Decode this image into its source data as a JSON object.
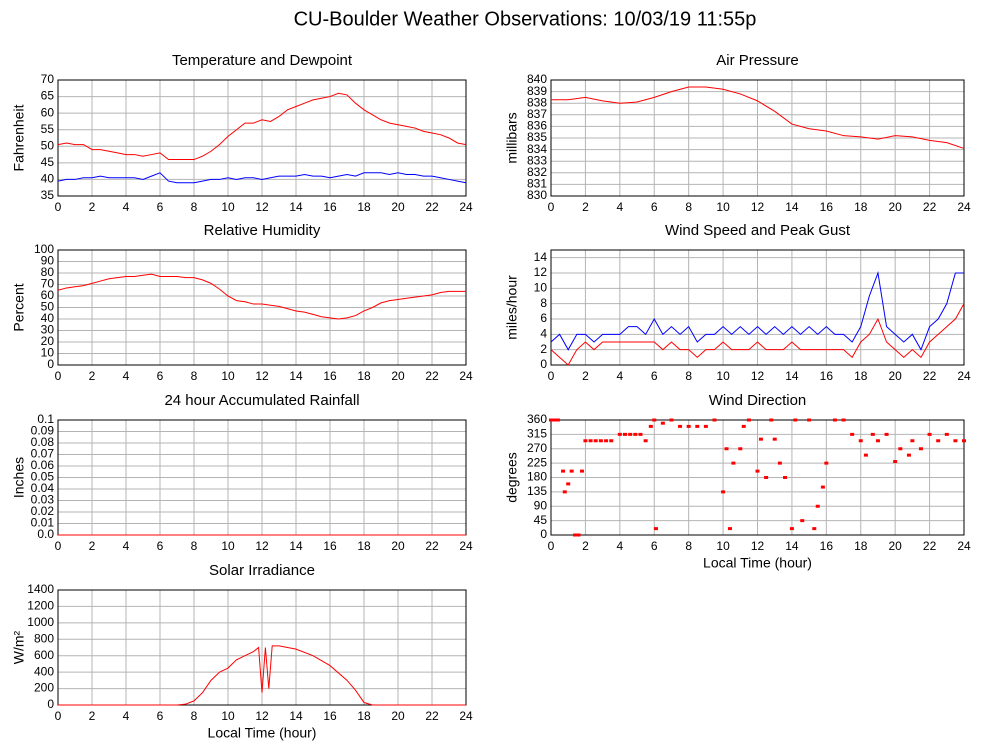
{
  "title": "CU-Boulder Weather Observations: 10/03/19 11:55p",
  "chart_data": [
    {
      "type": "line",
      "title": "Temperature and Dewpoint",
      "y_label": "Fahrenheit",
      "xlim": [
        0,
        24
      ],
      "xticks": [
        0,
        2,
        4,
        6,
        8,
        10,
        12,
        14,
        16,
        18,
        20,
        22,
        24
      ],
      "ylim": [
        35,
        70
      ],
      "yticks": [
        35,
        40,
        45,
        50,
        55,
        60,
        65,
        70
      ],
      "grid": true,
      "x": [
        0,
        0.5,
        1,
        1.5,
        2,
        2.5,
        3,
        3.5,
        4,
        4.5,
        5,
        5.5,
        6,
        6.5,
        7,
        7.5,
        8,
        8.5,
        9,
        9.5,
        10,
        10.5,
        11,
        11.5,
        12,
        12.5,
        13,
        13.5,
        14,
        14.5,
        15,
        15.5,
        16,
        16.5,
        17,
        17.5,
        18,
        18.5,
        19,
        19.5,
        20,
        20.5,
        21,
        21.5,
        22,
        22.5,
        23,
        23.5,
        24
      ],
      "series": [
        {
          "color": "#ff0000",
          "values": [
            50.5,
            51,
            50.5,
            50.5,
            49,
            49,
            48.5,
            48,
            47.5,
            47.5,
            47,
            47.5,
            48,
            46,
            46,
            46,
            46,
            47,
            48.5,
            50.5,
            53,
            55,
            57,
            57,
            58,
            57.5,
            59,
            61,
            62,
            63,
            64,
            64.5,
            65,
            66,
            65.5,
            63,
            61,
            59.5,
            58,
            57,
            56.5,
            56,
            55.5,
            54.5,
            54,
            53.5,
            52.5,
            51,
            50.5
          ]
        },
        {
          "color": "#0000ff",
          "values": [
            39.5,
            40,
            40,
            40.5,
            40.5,
            41,
            40.5,
            40.5,
            40.5,
            40.5,
            40,
            41,
            42,
            39.5,
            39,
            39,
            39,
            39.5,
            40,
            40,
            40.5,
            40,
            40.5,
            40.5,
            40,
            40.5,
            41,
            41,
            41,
            41.5,
            41,
            41,
            40.5,
            41,
            41.5,
            41,
            42,
            42,
            42,
            41.5,
            42,
            41.5,
            41.5,
            41,
            41,
            40.5,
            40,
            39.5,
            39
          ]
        }
      ]
    },
    {
      "type": "line",
      "title": "Air Pressure",
      "y_label": "millibars",
      "xlim": [
        0,
        24
      ],
      "xticks": [
        0,
        2,
        4,
        6,
        8,
        10,
        12,
        14,
        16,
        18,
        20,
        22,
        24
      ],
      "ylim": [
        830,
        840
      ],
      "yticks": [
        830,
        831,
        832,
        833,
        834,
        835,
        836,
        837,
        838,
        839,
        840
      ],
      "grid": true,
      "x": [
        0,
        0.5,
        1,
        2,
        3,
        4,
        5,
        6,
        7,
        8,
        9,
        10,
        11,
        12,
        13,
        14,
        15,
        16,
        17,
        18,
        19,
        20,
        21,
        22,
        23,
        24
      ],
      "series": [
        {
          "color": "#ff0000",
          "values": [
            838.3,
            838.3,
            838.3,
            838.5,
            838.2,
            838,
            838.1,
            838.5,
            839,
            839.4,
            839.4,
            839.2,
            838.8,
            838.2,
            837.3,
            836.2,
            835.8,
            835.6,
            835.2,
            835.1,
            834.9,
            835.2,
            835.1,
            834.8,
            834.6,
            834.1
          ]
        }
      ]
    },
    {
      "type": "line",
      "title": "Relative Humidity",
      "y_label": "Percent",
      "xlim": [
        0,
        24
      ],
      "xticks": [
        0,
        2,
        4,
        6,
        8,
        10,
        12,
        14,
        16,
        18,
        20,
        22,
        24
      ],
      "ylim": [
        0,
        100
      ],
      "yticks": [
        0,
        10,
        20,
        30,
        40,
        50,
        60,
        70,
        80,
        90,
        100
      ],
      "grid": true,
      "x": [
        0,
        0.5,
        1,
        1.5,
        2,
        2.5,
        3,
        3.5,
        4,
        4.5,
        5,
        5.5,
        6,
        6.5,
        7,
        7.5,
        8,
        8.5,
        9,
        9.5,
        10,
        10.5,
        11,
        11.5,
        12,
        12.5,
        13,
        13.5,
        14,
        14.5,
        15,
        15.5,
        16,
        16.5,
        17,
        17.5,
        18,
        18.5,
        19,
        19.5,
        20,
        20.5,
        21,
        21.5,
        22,
        22.5,
        23,
        23.5,
        24
      ],
      "series": [
        {
          "color": "#ff0000",
          "values": [
            65,
            67,
            68,
            69,
            71,
            73,
            75,
            76,
            77,
            77,
            78,
            79,
            77,
            77,
            77,
            76,
            76,
            74,
            71,
            66,
            60,
            56,
            55,
            53,
            53,
            52,
            51,
            49,
            47,
            46,
            44,
            42,
            41,
            40,
            41,
            43,
            47,
            50,
            54,
            56,
            57,
            58,
            59,
            60,
            61,
            63,
            64,
            64,
            64
          ]
        }
      ]
    },
    {
      "type": "line",
      "title": "Wind Speed and Peak Gust",
      "y_label": "miles/hour",
      "xlim": [
        0,
        24
      ],
      "xticks": [
        0,
        2,
        4,
        6,
        8,
        10,
        12,
        14,
        16,
        18,
        20,
        22,
        24
      ],
      "ylim": [
        0,
        15
      ],
      "yticks": [
        0,
        2,
        4,
        6,
        8,
        10,
        12,
        14
      ],
      "grid": true,
      "x": [
        0,
        0.5,
        1,
        1.5,
        2,
        2.5,
        3,
        3.5,
        4,
        4.5,
        5,
        5.5,
        6,
        6.5,
        7,
        7.5,
        8,
        8.5,
        9,
        9.5,
        10,
        10.5,
        11,
        11.5,
        12,
        12.5,
        13,
        13.5,
        14,
        14.5,
        15,
        15.5,
        16,
        16.5,
        17,
        17.5,
        18,
        18.5,
        19,
        19.5,
        20,
        20.5,
        21,
        21.5,
        22,
        22.5,
        23,
        23.5,
        24
      ],
      "series": [
        {
          "color": "#0000ff",
          "values": [
            3,
            4,
            2,
            4,
            4,
            3,
            4,
            4,
            4,
            5,
            5,
            4,
            6,
            4,
            5,
            4,
            5,
            3,
            4,
            4,
            5,
            4,
            5,
            4,
            5,
            4,
            5,
            4,
            5,
            4,
            5,
            4,
            5,
            4,
            4,
            3,
            5,
            9,
            12,
            5,
            4,
            3,
            4,
            2,
            5,
            6,
            8,
            12,
            12
          ]
        },
        {
          "color": "#ff0000",
          "values": [
            2,
            1,
            0,
            2,
            3,
            2,
            3,
            3,
            3,
            3,
            3,
            3,
            3,
            2,
            3,
            2,
            2,
            1,
            2,
            2,
            3,
            2,
            2,
            2,
            3,
            2,
            2,
            2,
            3,
            2,
            2,
            2,
            2,
            2,
            2,
            1,
            3,
            4,
            6,
            3,
            2,
            1,
            2,
            1,
            3,
            4,
            5,
            6,
            8
          ]
        }
      ]
    },
    {
      "type": "line",
      "title": "24 hour Accumulated Rainfall",
      "y_label": "Inches",
      "xlim": [
        0,
        24
      ],
      "xticks": [
        0,
        2,
        4,
        6,
        8,
        10,
        12,
        14,
        16,
        18,
        20,
        22,
        24
      ],
      "ylim": [
        0,
        0.1
      ],
      "yticks": [
        {
          "value": 0,
          "label": "0.0"
        },
        0.01,
        0.02,
        0.03,
        0.04,
        0.05,
        0.06,
        0.07,
        0.08,
        0.09,
        0.1
      ],
      "grid": true,
      "x": [
        0,
        24
      ],
      "series": [
        {
          "color": "#ff0000",
          "values": [
            0,
            0
          ]
        }
      ]
    },
    {
      "type": "scatter",
      "title": "Wind Direction",
      "y_label": "degrees",
      "x_label": "Local Time (hour)",
      "xlim": [
        0,
        24
      ],
      "xticks": [
        0,
        2,
        4,
        6,
        8,
        10,
        12,
        14,
        16,
        18,
        20,
        22,
        24
      ],
      "ylim": [
        0,
        360
      ],
      "yticks": [
        0,
        45,
        90,
        135,
        180,
        225,
        270,
        315,
        360
      ],
      "grid": true,
      "color": "#ff0000",
      "x": [
        0,
        0.2,
        0.4,
        0.7,
        0.8,
        1,
        1.2,
        1.4,
        1.6,
        1.8,
        2,
        2.3,
        2.6,
        2.9,
        3.2,
        3.5,
        4,
        4.3,
        4.6,
        4.9,
        5.2,
        5.5,
        5.8,
        6,
        6.1,
        6.5,
        7,
        7.5,
        8,
        8.5,
        9,
        9.5,
        10,
        10.2,
        10.4,
        10.6,
        11,
        11.2,
        11.5,
        12,
        12.2,
        12.5,
        12.8,
        13,
        13.3,
        13.6,
        14,
        14.2,
        14.6,
        15,
        15.3,
        15.5,
        15.8,
        16,
        16.5,
        17,
        17.5,
        18,
        18.3,
        18.7,
        19,
        19.5,
        20,
        20.3,
        20.8,
        21,
        21.5,
        22,
        22.5,
        23,
        23.5,
        24
      ],
      "values": [
        360,
        360,
        360,
        200,
        135,
        160,
        200,
        0,
        0,
        200,
        295,
        295,
        295,
        295,
        295,
        295,
        315,
        315,
        315,
        315,
        315,
        295,
        340,
        360,
        20,
        350,
        360,
        340,
        340,
        340,
        340,
        360,
        135,
        270,
        20,
        225,
        270,
        340,
        360,
        200,
        300,
        180,
        360,
        300,
        225,
        180,
        20,
        360,
        45,
        360,
        20,
        90,
        150,
        225,
        360,
        360,
        315,
        295,
        250,
        315,
        295,
        315,
        230,
        270,
        250,
        295,
        270,
        315,
        295,
        315,
        295,
        295
      ]
    },
    {
      "type": "line",
      "title": "Solar Irradiance",
      "y_label": "W/m²",
      "x_label": "Local Time (hour)",
      "xlim": [
        0,
        24
      ],
      "xticks": [
        0,
        2,
        4,
        6,
        8,
        10,
        12,
        14,
        16,
        18,
        20,
        22,
        24
      ],
      "ylim": [
        0,
        1400
      ],
      "yticks": [
        0,
        200,
        400,
        600,
        800,
        1000,
        1200,
        1400
      ],
      "grid": true,
      "x": [
        0,
        7,
        7.5,
        8,
        8.5,
        9,
        9.5,
        10,
        10.5,
        11,
        11.5,
        11.8,
        12,
        12.2,
        12.4,
        12.6,
        13,
        14,
        15,
        16,
        17,
        17.5,
        18,
        18.5,
        24
      ],
      "series": [
        {
          "color": "#ff0000",
          "values": [
            0,
            0,
            10,
            50,
            150,
            300,
            400,
            450,
            550,
            600,
            650,
            700,
            150,
            700,
            200,
            720,
            720,
            680,
            600,
            480,
            300,
            180,
            30,
            0,
            0
          ]
        }
      ]
    }
  ]
}
